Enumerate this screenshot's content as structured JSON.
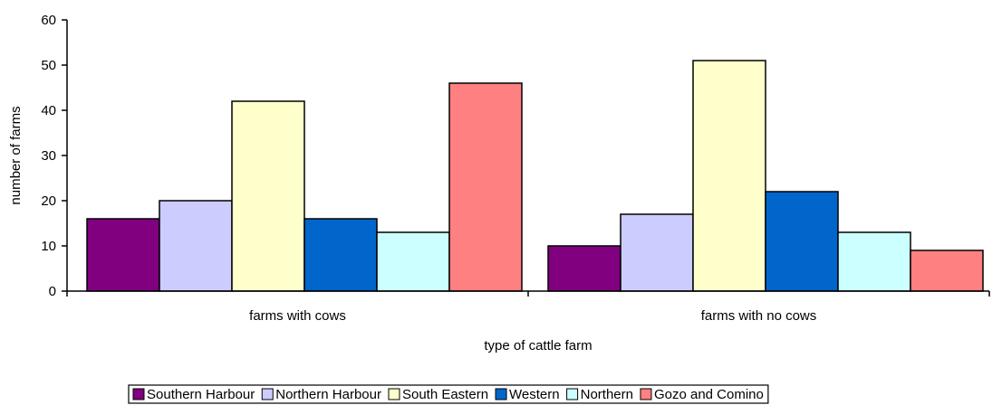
{
  "chart_data": {
    "type": "bar",
    "title": "",
    "xlabel": "type of cattle farm",
    "ylabel": "number of farms",
    "ylim": [
      0,
      60
    ],
    "yticks": [
      0,
      10,
      20,
      30,
      40,
      50,
      60
    ],
    "grid": false,
    "legend_position": "bottom",
    "categories": [
      "farms with cows",
      "farms with no cows"
    ],
    "series": [
      {
        "name": "Southern Harbour",
        "color": "#800080",
        "values": [
          16,
          10
        ]
      },
      {
        "name": "Northern Harbour",
        "color": "#ccccff",
        "values": [
          20,
          17
        ]
      },
      {
        "name": "South Eastern",
        "color": "#ffffcc",
        "values": [
          42,
          51
        ]
      },
      {
        "name": "Western",
        "color": "#0066cc",
        "values": [
          16,
          22
        ]
      },
      {
        "name": "Northern",
        "color": "#ccffff",
        "values": [
          13,
          13
        ]
      },
      {
        "name": "Gozo and Comino",
        "color": "#ff8080",
        "values": [
          46,
          9
        ]
      }
    ]
  }
}
